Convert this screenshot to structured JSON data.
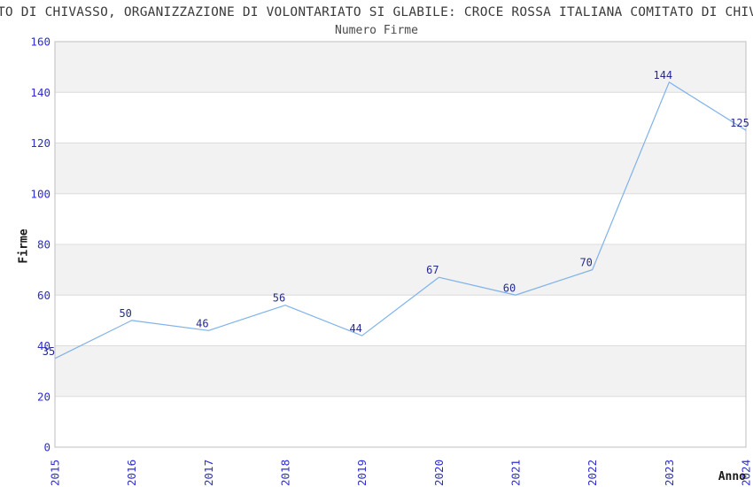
{
  "page_title": "TO DI CHIVASSO, ORGANIZZAZIONE DI VOLONTARIATO SI GLABILE: CROCE ROSSA ITALIANA COMITATO DI CHIV",
  "chart_data": {
    "type": "line",
    "title": "Numero Firme",
    "xlabel": "Anno",
    "ylabel": "Firme",
    "categories": [
      "2015",
      "2016",
      "2017",
      "2018",
      "2019",
      "2020",
      "2021",
      "2022",
      "2023",
      "2024"
    ],
    "values": [
      35,
      50,
      46,
      56,
      44,
      67,
      60,
      70,
      144,
      125
    ],
    "ylim": [
      0,
      160
    ],
    "ytick_step": 20,
    "legend": "none",
    "grid": "horizontal-bands",
    "colors": {
      "line": "#7fb2ea",
      "data_label": "#262a8e",
      "tick_label": "#2d2dd0",
      "band": "#f2f2f2",
      "gridline": "#dcdcdc",
      "plot_border": "#c9c9c9",
      "title_text": "#3a3a3a"
    }
  }
}
